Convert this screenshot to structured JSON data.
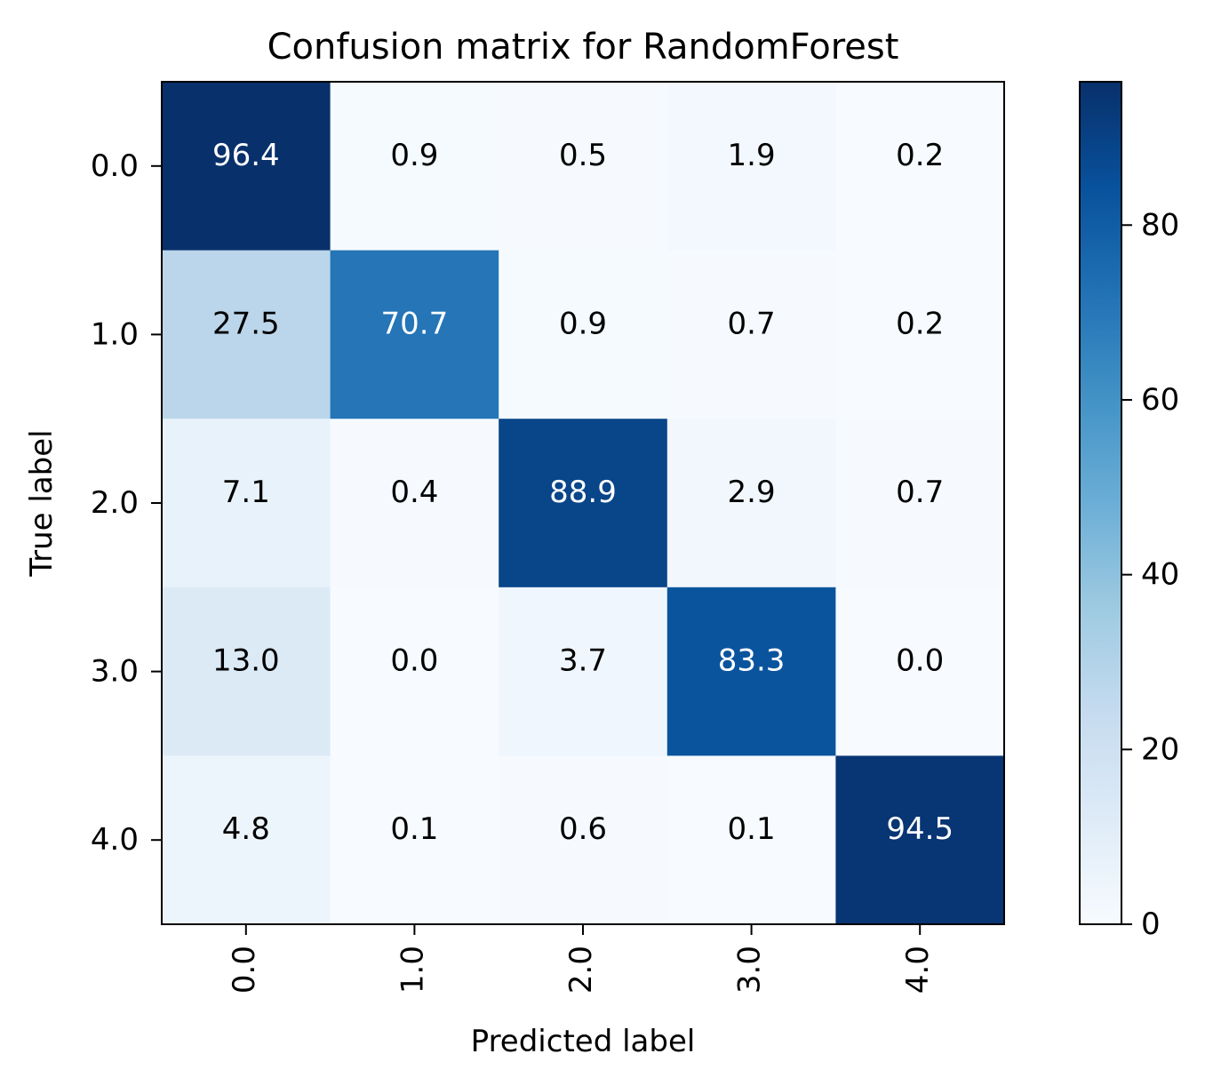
{
  "chart_data": {
    "type": "heatmap",
    "title": "Confusion matrix for RandomForest",
    "xlabel": "Predicted label",
    "ylabel": "True label",
    "x_categories": [
      "0.0",
      "1.0",
      "2.0",
      "3.0",
      "4.0"
    ],
    "y_categories": [
      "0.0",
      "1.0",
      "2.0",
      "3.0",
      "4.0"
    ],
    "matrix": [
      [
        96.4,
        0.9,
        0.5,
        1.9,
        0.2
      ],
      [
        27.5,
        70.7,
        0.9,
        0.7,
        0.2
      ],
      [
        7.1,
        0.4,
        88.9,
        2.9,
        0.7
      ],
      [
        13.0,
        0.0,
        3.7,
        83.3,
        0.0
      ],
      [
        4.8,
        0.1,
        0.6,
        0.1,
        94.5
      ]
    ],
    "value_labels": [
      [
        "96.4",
        "0.9",
        "0.5",
        "1.9",
        "0.2"
      ],
      [
        "27.5",
        "70.7",
        "0.9",
        "0.7",
        "0.2"
      ],
      [
        "7.1",
        "0.4",
        "88.9",
        "2.9",
        "0.7"
      ],
      [
        "13.0",
        "0.0",
        "3.7",
        "83.3",
        "0.0"
      ],
      [
        "4.8",
        "0.1",
        "0.6",
        "0.1",
        "94.5"
      ]
    ],
    "colormap": "Blues",
    "colorbar": {
      "range": [
        0,
        96.4
      ],
      "ticks": [
        0,
        20,
        40,
        60,
        80
      ],
      "tick_labels": [
        "0",
        "20",
        "40",
        "60",
        "80"
      ]
    },
    "x_tick_rotation": "vertical",
    "grid": false
  }
}
